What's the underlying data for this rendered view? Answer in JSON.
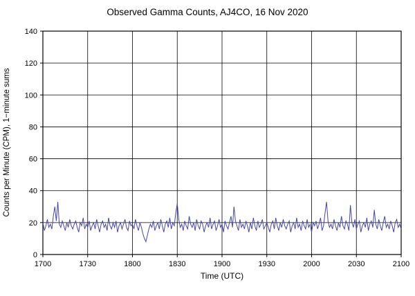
{
  "chart_data": {
    "type": "line",
    "title": "Observed Gamma Counts, AJ4CO, 16 Nov 2020",
    "xlabel": "Time (UTC)",
    "ylabel": "Counts per Minute (CPM), 1−minute sums",
    "xtick_labels": [
      "1700",
      "1730",
      "1800",
      "1830",
      "1900",
      "1930",
      "2000",
      "2030",
      "2100"
    ],
    "ytick_values": [
      0,
      20,
      40,
      60,
      80,
      100,
      120,
      140
    ],
    "xlim_minutes": [
      0,
      240
    ],
    "ylim": [
      0,
      140
    ],
    "grid": true,
    "legend": "none",
    "line_color": "#4444aa",
    "grid_color": "#000000",
    "values": [
      20,
      15,
      18,
      22,
      17,
      19,
      16,
      24,
      30,
      21,
      33,
      19,
      17,
      21,
      18,
      15,
      20,
      17,
      22,
      18,
      16,
      19,
      21,
      17,
      14,
      20,
      18,
      23,
      16,
      19,
      17,
      21,
      15,
      18,
      20,
      16,
      22,
      18,
      14,
      19,
      21,
      17,
      19,
      15,
      23,
      18,
      16,
      20,
      17,
      21,
      14,
      18,
      20,
      16,
      19,
      22,
      17,
      15,
      21,
      18,
      19,
      16,
      22,
      18,
      15,
      20,
      17,
      13,
      10,
      8,
      12,
      16,
      19,
      17,
      21,
      15,
      18,
      20,
      16,
      22,
      18,
      14,
      19,
      21,
      17,
      23,
      16,
      20,
      18,
      26,
      32,
      22,
      17,
      19,
      15,
      21,
      18,
      16,
      24,
      19,
      17,
      20,
      15,
      22,
      18,
      16,
      21,
      19,
      14,
      18,
      20,
      17,
      23,
      16,
      19,
      21,
      15,
      18,
      22,
      17,
      19,
      14,
      21,
      18,
      16,
      20,
      24,
      17,
      30,
      21,
      18,
      15,
      22,
      17,
      19,
      16,
      21,
      18,
      14,
      20,
      16,
      23,
      18,
      15,
      21,
      17,
      19,
      22,
      16,
      18,
      20,
      17,
      14,
      19,
      21,
      16,
      23,
      18,
      15,
      20,
      17,
      22,
      18,
      16,
      19,
      21,
      14,
      18,
      20,
      16,
      23,
      17,
      19,
      15,
      21,
      18,
      16,
      22,
      17,
      19,
      14,
      20,
      18,
      21,
      16,
      19,
      23,
      15,
      18,
      26,
      33,
      21,
      17,
      19,
      16,
      22,
      18,
      15,
      20,
      17,
      24,
      18,
      16,
      21,
      19,
      15,
      31,
      20,
      17,
      22,
      16,
      19,
      21,
      14,
      18,
      20,
      17,
      23,
      15,
      19,
      21,
      17,
      28,
      19,
      16,
      22,
      18,
      15,
      20,
      24,
      17,
      19,
      16,
      21,
      18,
      14,
      20,
      22,
      17,
      19,
      16
    ]
  }
}
